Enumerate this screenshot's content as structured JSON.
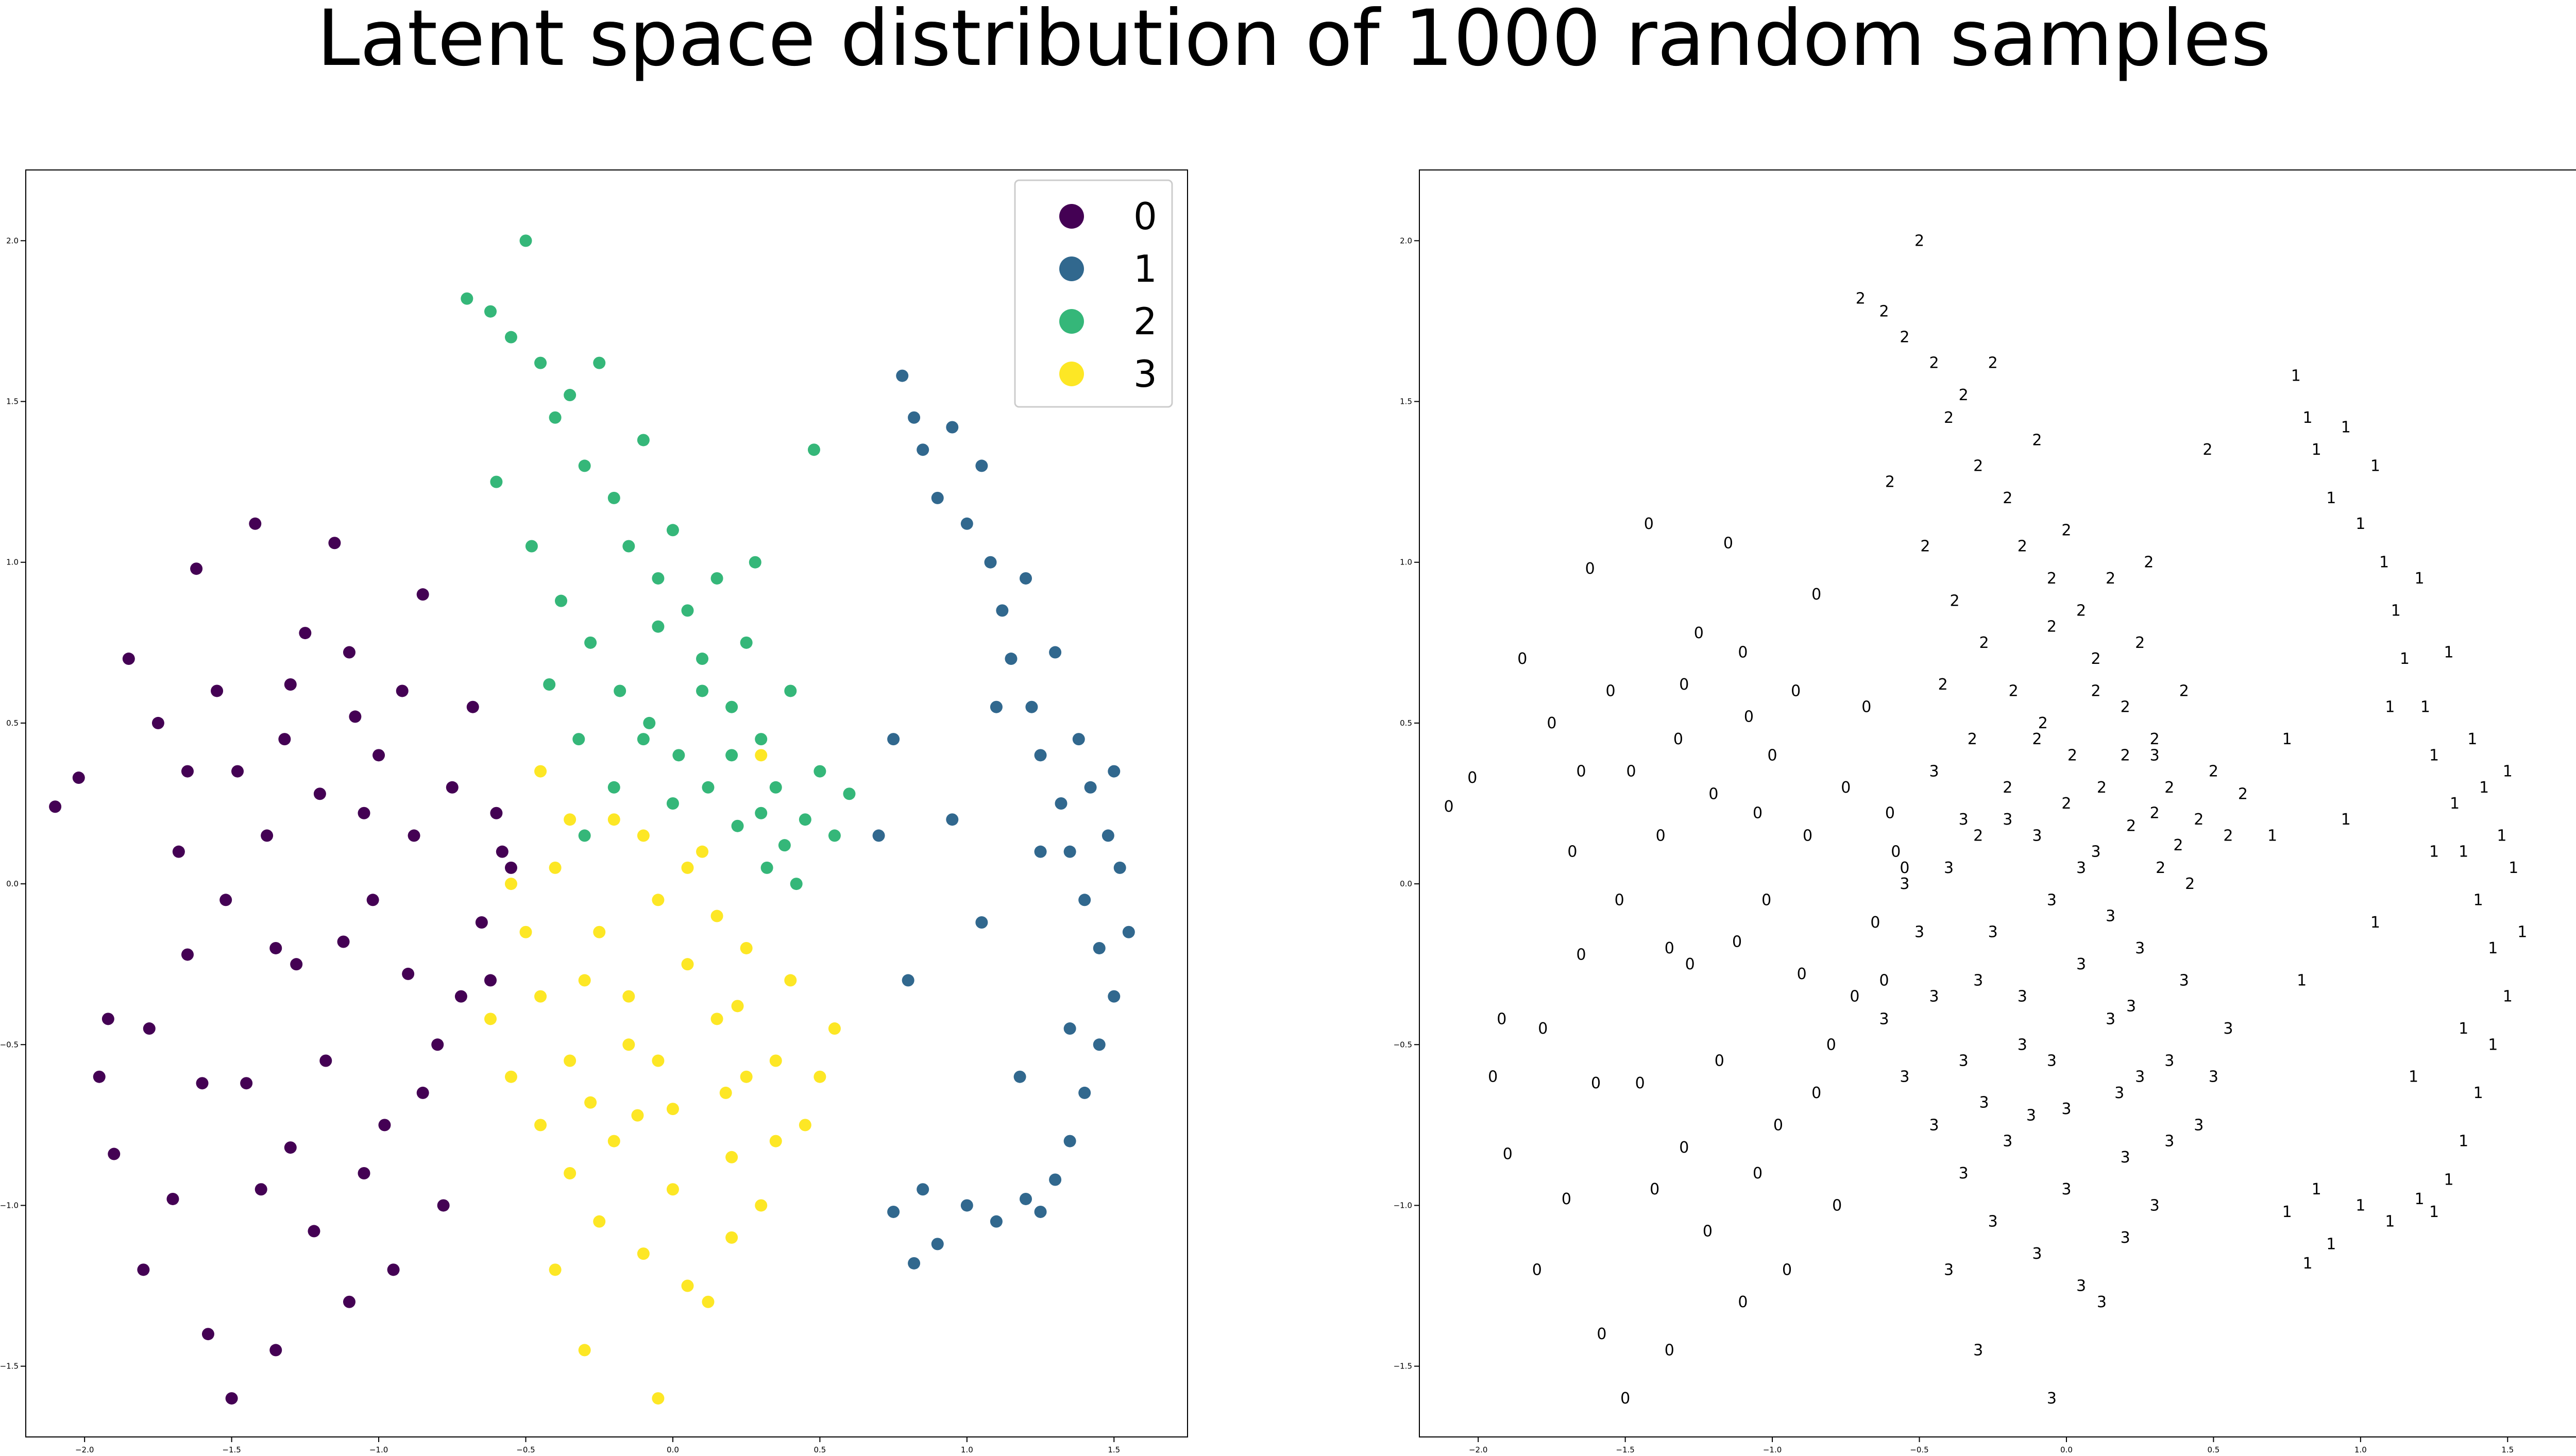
{
  "title": "Latent space distribution of 1000 random samples",
  "chart_data": [
    {
      "type": "scatter",
      "title": "",
      "xlabel": "",
      "ylabel": "",
      "xlim": [
        -2.2,
        1.75
      ],
      "ylim": [
        -1.72,
        2.22
      ],
      "grid": false,
      "legend": "top-right",
      "x_ticks": [
        "−2.0",
        "−1.5",
        "−1.0",
        "−0.5",
        "0.0",
        "0.5",
        "1.0",
        "1.5"
      ],
      "y_ticks": [
        "−1.5",
        "−1.0",
        "−0.5",
        "0.0",
        "0.5",
        "1.0",
        "1.5",
        "2.0"
      ],
      "series": [
        {
          "name": "0",
          "color": "#440154",
          "points": [
            [
              -2.1,
              0.24
            ],
            [
              -2.02,
              0.33
            ],
            [
              -1.92,
              -0.42
            ],
            [
              -1.9,
              -0.84
            ],
            [
              -1.85,
              0.7
            ],
            [
              -1.8,
              -1.2
            ],
            [
              -1.75,
              0.5
            ],
            [
              -1.7,
              -0.98
            ],
            [
              -1.68,
              0.1
            ],
            [
              -1.65,
              -0.22
            ],
            [
              -1.62,
              0.98
            ],
            [
              -1.58,
              -1.4
            ],
            [
              -1.55,
              0.6
            ],
            [
              -1.52,
              -0.05
            ],
            [
              -1.5,
              -1.6
            ],
            [
              -1.48,
              0.35
            ],
            [
              -1.45,
              -0.62
            ],
            [
              -1.42,
              1.12
            ],
            [
              -1.38,
              0.15
            ],
            [
              -1.35,
              -1.45
            ],
            [
              -1.32,
              0.45
            ],
            [
              -1.3,
              -0.82
            ],
            [
              -1.28,
              -0.25
            ],
            [
              -1.25,
              0.78
            ],
            [
              -1.22,
              -1.08
            ],
            [
              -1.2,
              0.28
            ],
            [
              -1.18,
              -0.55
            ],
            [
              -1.15,
              1.06
            ],
            [
              -1.12,
              -0.18
            ],
            [
              -1.1,
              -1.3
            ],
            [
              -1.08,
              0.52
            ],
            [
              -1.05,
              -0.9
            ],
            [
              -1.02,
              -0.05
            ],
            [
              -1.0,
              0.4
            ],
            [
              -0.98,
              -0.75
            ],
            [
              -0.95,
              -1.2
            ],
            [
              -0.92,
              0.6
            ],
            [
              -0.9,
              -0.28
            ],
            [
              -0.88,
              0.15
            ],
            [
              -0.85,
              0.9
            ],
            [
              -0.8,
              -0.5
            ],
            [
              -0.78,
              -1.0
            ],
            [
              -0.75,
              0.3
            ],
            [
              -0.72,
              -0.35
            ],
            [
              -0.68,
              0.55
            ],
            [
              -0.65,
              -0.12
            ],
            [
              -0.62,
              -0.3
            ],
            [
              -0.6,
              0.22
            ],
            [
              -0.58,
              0.1
            ],
            [
              -0.55,
              0.05
            ],
            [
              -1.6,
              -0.62
            ],
            [
              -1.4,
              -0.95
            ],
            [
              -1.3,
              0.62
            ],
            [
              -1.78,
              -0.45
            ],
            [
              -1.95,
              -0.6
            ],
            [
              -1.65,
              0.35
            ],
            [
              -1.1,
              0.72
            ],
            [
              -1.35,
              -0.2
            ],
            [
              -1.05,
              0.22
            ],
            [
              -0.85,
              -0.65
            ]
          ]
        },
        {
          "name": "1",
          "color": "#31688e",
          "points": [
            [
              0.78,
              1.58
            ],
            [
              0.82,
              1.45
            ],
            [
              0.85,
              1.35
            ],
            [
              0.9,
              1.2
            ],
            [
              0.95,
              1.42
            ],
            [
              1.0,
              1.12
            ],
            [
              1.05,
              1.3
            ],
            [
              1.08,
              1.0
            ],
            [
              1.12,
              0.85
            ],
            [
              1.15,
              0.7
            ],
            [
              1.2,
              0.95
            ],
            [
              1.22,
              0.55
            ],
            [
              1.25,
              0.4
            ],
            [
              1.3,
              0.72
            ],
            [
              1.32,
              0.25
            ],
            [
              1.35,
              0.1
            ],
            [
              1.38,
              0.45
            ],
            [
              1.4,
              -0.05
            ],
            [
              1.42,
              0.3
            ],
            [
              1.45,
              -0.2
            ],
            [
              1.48,
              0.15
            ],
            [
              1.5,
              -0.35
            ],
            [
              1.52,
              0.05
            ],
            [
              1.55,
              -0.15
            ],
            [
              1.45,
              -0.5
            ],
            [
              1.4,
              -0.65
            ],
            [
              1.35,
              -0.8
            ],
            [
              1.3,
              -0.92
            ],
            [
              1.25,
              -1.02
            ],
            [
              1.2,
              -0.98
            ],
            [
              1.1,
              -1.05
            ],
            [
              1.0,
              -1.0
            ],
            [
              0.9,
              -1.12
            ],
            [
              0.82,
              -1.18
            ],
            [
              0.75,
              -1.02
            ],
            [
              0.85,
              -0.95
            ],
            [
              0.7,
              0.15
            ],
            [
              0.8,
              -0.3
            ],
            [
              0.75,
              0.45
            ],
            [
              0.95,
              0.2
            ],
            [
              1.1,
              0.55
            ],
            [
              1.25,
              0.1
            ],
            [
              1.35,
              -0.45
            ],
            [
              1.5,
              0.35
            ],
            [
              1.18,
              -0.6
            ],
            [
              1.05,
              -0.12
            ]
          ]
        },
        {
          "name": "2",
          "color": "#35b779",
          "points": [
            [
              -0.7,
              1.82
            ],
            [
              -0.62,
              1.78
            ],
            [
              -0.55,
              1.7
            ],
            [
              -0.5,
              2.0
            ],
            [
              -0.45,
              1.62
            ],
            [
              -0.4,
              1.45
            ],
            [
              -0.35,
              1.52
            ],
            [
              -0.3,
              1.3
            ],
            [
              -0.25,
              1.62
            ],
            [
              -0.2,
              1.2
            ],
            [
              -0.15,
              1.05
            ],
            [
              -0.1,
              1.38
            ],
            [
              -0.05,
              0.95
            ],
            [
              0.0,
              1.1
            ],
            [
              0.05,
              0.85
            ],
            [
              0.1,
              0.7
            ],
            [
              0.15,
              0.95
            ],
            [
              0.2,
              0.55
            ],
            [
              0.25,
              0.75
            ],
            [
              0.3,
              0.45
            ],
            [
              0.35,
              0.3
            ],
            [
              0.4,
              0.6
            ],
            [
              0.45,
              0.2
            ],
            [
              0.5,
              0.35
            ],
            [
              0.55,
              0.15
            ],
            [
              0.6,
              0.28
            ],
            [
              -0.6,
              1.25
            ],
            [
              -0.48,
              1.05
            ],
            [
              -0.38,
              0.88
            ],
            [
              -0.28,
              0.75
            ],
            [
              -0.18,
              0.6
            ],
            [
              -0.08,
              0.5
            ],
            [
              0.02,
              0.4
            ],
            [
              0.12,
              0.3
            ],
            [
              0.22,
              0.18
            ],
            [
              0.32,
              0.05
            ],
            [
              0.42,
              0.0
            ],
            [
              -0.3,
              0.15
            ],
            [
              -0.2,
              0.3
            ],
            [
              -0.1,
              0.45
            ],
            [
              0.0,
              0.25
            ],
            [
              0.1,
              0.6
            ],
            [
              0.2,
              0.4
            ],
            [
              0.3,
              0.22
            ],
            [
              0.38,
              0.12
            ],
            [
              -0.42,
              0.62
            ],
            [
              -0.32,
              0.45
            ],
            [
              0.48,
              1.35
            ],
            [
              0.28,
              1.0
            ],
            [
              -0.05,
              0.8
            ]
          ]
        },
        {
          "name": "3",
          "color": "#fde725",
          "points": [
            [
              -0.62,
              -0.42
            ],
            [
              -0.55,
              -0.6
            ],
            [
              -0.5,
              -0.15
            ],
            [
              -0.45,
              -0.75
            ],
            [
              -0.4,
              0.05
            ],
            [
              -0.35,
              -0.9
            ],
            [
              -0.3,
              -0.3
            ],
            [
              -0.25,
              -1.05
            ],
            [
              -0.2,
              0.2
            ],
            [
              -0.15,
              -0.5
            ],
            [
              -0.1,
              -1.15
            ],
            [
              -0.05,
              -0.05
            ],
            [
              0.0,
              -0.7
            ],
            [
              0.05,
              -1.25
            ],
            [
              0.1,
              0.1
            ],
            [
              0.15,
              -0.42
            ],
            [
              0.2,
              -0.85
            ],
            [
              0.25,
              -0.2
            ],
            [
              0.3,
              -1.0
            ],
            [
              0.35,
              -0.55
            ],
            [
              0.4,
              -0.3
            ],
            [
              0.45,
              -0.75
            ],
            [
              0.5,
              -0.6
            ],
            [
              0.55,
              -0.45
            ],
            [
              -0.55,
              0.0
            ],
            [
              -0.45,
              -0.35
            ],
            [
              -0.35,
              -0.55
            ],
            [
              -0.25,
              -0.15
            ],
            [
              -0.15,
              -0.35
            ],
            [
              -0.05,
              -0.55
            ],
            [
              0.05,
              -0.25
            ],
            [
              0.15,
              -0.1
            ],
            [
              0.25,
              -0.6
            ],
            [
              0.35,
              -0.8
            ],
            [
              -0.3,
              -1.45
            ],
            [
              -0.05,
              -1.6
            ],
            [
              0.12,
              -1.3
            ],
            [
              -0.2,
              -0.8
            ],
            [
              0.0,
              -0.95
            ],
            [
              0.2,
              -1.1
            ],
            [
              -0.4,
              -1.2
            ],
            [
              0.3,
              0.4
            ],
            [
              -0.45,
              0.35
            ],
            [
              -0.35,
              0.2
            ],
            [
              -0.1,
              0.15
            ],
            [
              0.05,
              0.05
            ],
            [
              0.22,
              -0.38
            ],
            [
              -0.12,
              -0.72
            ],
            [
              0.18,
              -0.65
            ],
            [
              -0.28,
              -0.68
            ]
          ]
        }
      ]
    },
    {
      "type": "scatter",
      "title": "",
      "xlabel": "",
      "ylabel": "",
      "xlim": [
        -2.2,
        1.75
      ],
      "ylim": [
        -1.72,
        2.22
      ],
      "grid": false,
      "legend": "none",
      "x_ticks": [
        "−2.0",
        "−1.5",
        "−1.0",
        "−0.5",
        "0.0",
        "0.5",
        "1.0",
        "1.5"
      ],
      "y_ticks": [
        "−1.5",
        "−1.0",
        "−0.5",
        "0.0",
        "0.5",
        "1.0",
        "1.5",
        "2.0"
      ],
      "marker": "digit image"
    }
  ]
}
